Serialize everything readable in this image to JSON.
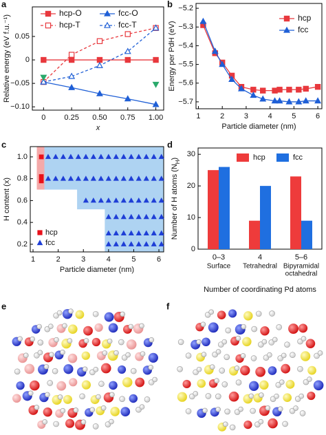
{
  "chart_data": [
    {
      "type": "line",
      "label": "a",
      "ylabel": "Relative energy (eV f.u.⁻¹)",
      "xlabel": "x",
      "x": [
        0,
        0.25,
        0.5,
        0.75,
        1
      ],
      "xlim": [
        -0.1,
        1.07
      ],
      "xticks": [
        0,
        0.25,
        {
          "value": 0.5,
          "label": "0.50"
        },
        0.75,
        {
          "value": 1,
          "label": "1.00"
        }
      ],
      "ylim": [
        -0.107,
        0.113
      ],
      "yticks": [
        {
          "value": -0.1,
          "label": "−0.10"
        },
        {
          "value": -0.05,
          "label": "−0.05"
        },
        0,
        0.05
      ],
      "legend": "upper left",
      "series": [
        {
          "name": "hcp-O",
          "color": "#e8383d",
          "marker": "square",
          "filled": true,
          "dash": false,
          "values": [
            0,
            0,
            0,
            0,
            0
          ]
        },
        {
          "name": "hcp-T",
          "color": "#e8383d",
          "marker": "square",
          "filled": false,
          "dash": true,
          "values": [
            -0.047,
            0.011,
            0.04,
            0.055,
            0.068
          ]
        },
        {
          "name": "fcc-O",
          "color": "#1f5fd6",
          "marker": "triangle",
          "filled": true,
          "dash": false,
          "values": [
            -0.047,
            -0.059,
            -0.072,
            -0.083,
            -0.095
          ]
        },
        {
          "name": "fcc-T",
          "color": "#1f5fd6",
          "marker": "triangle",
          "filled": false,
          "dash": true,
          "values": [
            -0.047,
            -0.035,
            -0.012,
            0.018,
            0.068
          ]
        },
        {
          "color": "#2aa96b",
          "marker": "triangle-down",
          "filled": true,
          "line": false,
          "values": [
            -0.037,
            null,
            null,
            null,
            -0.052
          ]
        }
      ]
    },
    {
      "type": "line",
      "label": "b",
      "ylabel": "Energy per PdH (eV)",
      "xlabel": "Particle diameter (nm)",
      "x": [
        1.2,
        1.7,
        2.0,
        2.4,
        2.8,
        3.3,
        3.7,
        4.2,
        4.4,
        4.8,
        5.2,
        5.5,
        6.0
      ],
      "xlim": [
        0.9,
        6.17
      ],
      "xticks": [
        1,
        2,
        3,
        4,
        5,
        6
      ],
      "ylim": [
        -5.737,
        -5.174
      ],
      "yticks": [
        {
          "value": -5.7,
          "label": "−5.7"
        },
        {
          "value": -5.6,
          "label": "−5.6"
        },
        {
          "value": -5.5,
          "label": "−5.5"
        },
        {
          "value": -5.4,
          "label": "−5.4"
        },
        {
          "value": -5.3,
          "label": "−5.3"
        },
        {
          "value": -5.2,
          "label": "−5.2"
        }
      ],
      "legend": "upper right",
      "series": [
        {
          "name": "hcp",
          "color": "#e8383d",
          "marker": "square",
          "filled": true,
          "dash": false,
          "values": [
            -5.29,
            -5.44,
            -5.49,
            -5.56,
            -5.62,
            -5.635,
            -5.64,
            -5.64,
            -5.635,
            -5.635,
            -5.635,
            -5.63,
            -5.62
          ]
        },
        {
          "name": "fcc",
          "color": "#1f5fd6",
          "marker": "triangle",
          "filled": true,
          "dash": false,
          "values": [
            -5.27,
            -5.43,
            -5.5,
            -5.58,
            -5.63,
            -5.665,
            -5.685,
            -5.695,
            -5.695,
            -5.7,
            -5.7,
            -5.695,
            -5.695
          ]
        }
      ]
    },
    {
      "type": "scatter",
      "label": "c",
      "ylabel": "H content (x)",
      "xlabel": "Particle diameter (nm)",
      "xlim": [
        0.89,
        6.19
      ],
      "xticks": [
        1,
        2,
        3,
        4,
        5,
        6
      ],
      "ylim": [
        0.13,
        1.094
      ],
      "yticks": [
        0.2,
        0.4,
        0.6,
        0.8,
        {
          "value": 1,
          "label": "1.0"
        }
      ],
      "legend": "lower left",
      "regions": [
        {
          "color": "#f4a9a9",
          "x": [
            1.15,
            1.45,
            1.45,
            1.15
          ],
          "y": [
            1.094,
            1.094,
            0.7,
            0.7
          ]
        },
        {
          "color": "#aed3f2",
          "x": [
            1.45,
            6.19,
            6.19,
            3.85,
            3.85,
            2.75,
            2.75,
            1.45
          ],
          "y": [
            1.094,
            1.094,
            0.13,
            0.13,
            0.52,
            0.52,
            0.7,
            0.7
          ]
        }
      ],
      "series": [
        {
          "name": "hcp",
          "color": "#e8101a",
          "marker": "square",
          "filled": true,
          "x": [
            1.33,
            1.33,
            1.33
          ],
          "y": [
            1,
            0.82,
            0.78
          ]
        },
        {
          "name": "fcc",
          "color": "#1f3fd6",
          "marker": "triangle",
          "filled": true,
          "x": [
            1.6,
            1.9,
            2.2,
            2.5,
            2.8,
            3.1,
            3.4,
            3.7,
            4.0,
            4.3,
            4.6,
            4.9,
            5.2,
            5.5,
            5.8,
            6.1,
            1.6,
            1.9,
            2.2,
            2.5,
            2.8,
            3.1,
            3.4,
            3.7,
            4.0,
            4.3,
            4.6,
            4.9,
            5.2,
            5.5,
            5.8,
            6.1,
            3.1,
            3.4,
            3.7,
            4.0,
            4.3,
            4.6,
            4.9,
            5.2,
            5.5,
            5.8,
            6.1,
            4.0,
            4.3,
            4.6,
            4.9,
            5.2,
            5.5,
            5.8,
            6.1,
            4.0,
            4.3,
            4.6,
            4.9,
            5.2,
            5.5,
            5.8,
            6.1,
            4.0,
            4.3,
            4.6,
            4.9,
            5.2,
            5.5,
            5.8,
            6.1
          ],
          "y": [
            1,
            1,
            1,
            1,
            1,
            1,
            1,
            1,
            1,
            1,
            1,
            1,
            1,
            1,
            1,
            1,
            0.8,
            0.8,
            0.8,
            0.8,
            0.8,
            0.8,
            0.8,
            0.8,
            0.8,
            0.8,
            0.8,
            0.8,
            0.8,
            0.8,
            0.8,
            0.8,
            0.6,
            0.6,
            0.6,
            0.6,
            0.6,
            0.6,
            0.6,
            0.6,
            0.6,
            0.6,
            0.6,
            0.45,
            0.45,
            0.45,
            0.45,
            0.45,
            0.45,
            0.45,
            0.45,
            0.3,
            0.3,
            0.3,
            0.3,
            0.3,
            0.3,
            0.3,
            0.3,
            0.2,
            0.2,
            0.2,
            0.2,
            0.2,
            0.2,
            0.2,
            0.2
          ]
        }
      ]
    },
    {
      "type": "bar",
      "label": "d",
      "ylabel": [
        "Number of H atoms (N",
        "H",
        ")"
      ],
      "xlabel": "Number of coordinating Pd atoms",
      "categories": [
        "0–3",
        "4",
        "5–6"
      ],
      "category_descriptions": [
        [
          "Surface"
        ],
        [
          "Tetrahedral"
        ],
        [
          "Bipyramidal",
          "octahedral"
        ]
      ],
      "ylim": [
        0,
        32
      ],
      "yticks": [
        0,
        10,
        20,
        30
      ],
      "legend": "upper right",
      "series": [
        {
          "name": "hcp",
          "color": "#ee3b3b",
          "values": [
            25,
            9,
            23
          ]
        },
        {
          "name": "fcc",
          "color": "#1f6fe0",
          "values": [
            26,
            20,
            9
          ]
        }
      ]
    }
  ],
  "images": [
    {
      "label": "e"
    },
    {
      "label": "f"
    }
  ]
}
